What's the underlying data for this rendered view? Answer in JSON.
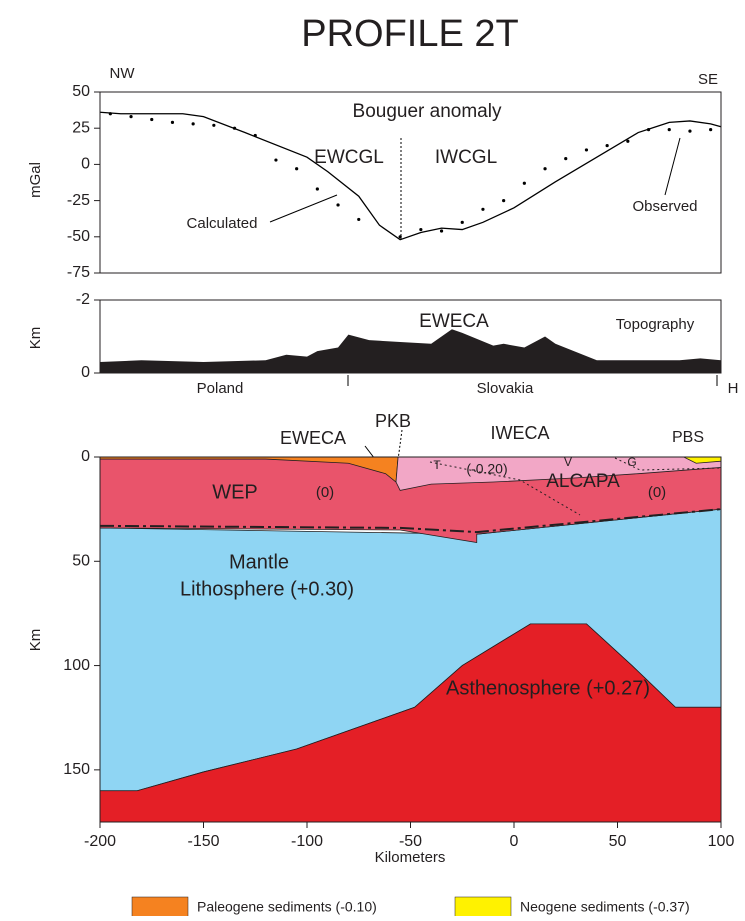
{
  "title": "PROFILE 2T",
  "chart_data": [
    {
      "type": "line",
      "ylabel": "mGal",
      "xlim": [
        -200,
        100
      ],
      "ylim": [
        -75,
        50
      ],
      "yticks": [
        50,
        25,
        0,
        -25,
        -50,
        -75
      ],
      "annotations": [
        "NW",
        "SE",
        "Bouguer anomaly",
        "EWCGL",
        "IWCGL"
      ],
      "series": [
        {
          "name": "Calculated",
          "type": "line",
          "color": "#000000",
          "x": [
            -200,
            -190,
            -160,
            -150,
            -130,
            -100,
            -90,
            -75,
            -65,
            -55,
            -45,
            -35,
            -25,
            -15,
            0,
            20,
            40,
            60,
            75,
            85,
            95,
            100
          ],
          "values": [
            36,
            35,
            35,
            33,
            22,
            5,
            -5,
            -22,
            -42,
            -52,
            -47,
            -44,
            -45,
            -40,
            -30,
            -12,
            5,
            22,
            29,
            30,
            28,
            26
          ]
        },
        {
          "name": "Observed",
          "type": "scatter",
          "color": "#000000",
          "x": [
            -195,
            -185,
            -175,
            -165,
            -155,
            -145,
            -135,
            -125,
            -115,
            -105,
            -95,
            -85,
            -75,
            -55,
            -45,
            -35,
            -25,
            -15,
            -5,
            5,
            15,
            25,
            35,
            45,
            55,
            65,
            75,
            85,
            95
          ],
          "values": [
            35,
            33,
            31,
            29,
            28,
            27,
            25,
            20,
            3,
            -3,
            -17,
            -28,
            -38,
            -50,
            -45,
            -46,
            -40,
            -31,
            -25,
            -13,
            -3,
            4,
            10,
            13,
            16,
            24,
            24,
            23,
            24
          ]
        }
      ]
    },
    {
      "type": "area",
      "ylabel": "Km",
      "xlim": [
        -200,
        100
      ],
      "ylim": [
        0,
        -2
      ],
      "yticks": [
        -2,
        0
      ],
      "color": "#231f20",
      "annotations": [
        "EWECA",
        "Topography",
        "Poland",
        "Slovakia",
        "H"
      ],
      "x": [
        -200,
        -180,
        -150,
        -120,
        -110,
        -100,
        -95,
        -85,
        -80,
        -70,
        -55,
        -40,
        -30,
        -25,
        -10,
        -5,
        5,
        15,
        20,
        40,
        60,
        80,
        90,
        100
      ],
      "values": [
        -0.3,
        -0.35,
        -0.3,
        -0.35,
        -0.5,
        -0.45,
        -0.6,
        -0.7,
        -1.05,
        -0.9,
        -0.85,
        -0.8,
        -1.2,
        -1.1,
        -0.75,
        -0.8,
        -0.7,
        -1.0,
        -0.8,
        -0.35,
        -0.35,
        -0.35,
        -0.4,
        -0.35
      ]
    },
    {
      "type": "section",
      "ylabel": "Km",
      "xlabel": "Kilometers",
      "xlim": [
        -200,
        100
      ],
      "ylim": [
        175,
        0
      ],
      "xticks": [
        -200,
        -150,
        -100,
        -50,
        0,
        50,
        100
      ],
      "yticks": [
        0,
        50,
        100,
        150
      ],
      "annotations": [
        "EWECA",
        "PKB",
        "IWECA",
        "PBS",
        "WEP",
        "(0)",
        "T",
        "(-0.20)",
        "V",
        "G",
        "ALCAPA",
        "(0)",
        "Mantle",
        "Lithosphere (+0.30)",
        "Asthenosphere (+0.27)"
      ],
      "bodies": [
        {
          "color": "#8fd5f3",
          "x": [
            -200,
            -18,
            100,
            100,
            78,
            57,
            35,
            8,
            -25,
            -48,
            -105,
            -150,
            -182,
            -200
          ],
          "y": [
            34,
            37,
            25,
            120,
            120,
            100,
            80,
            80,
            100,
            120,
            140,
            151,
            160,
            160
          ]
        },
        {
          "color": "#e41f26",
          "x": [
            -200,
            -200,
            -182,
            -150,
            -105,
            -48,
            -25,
            8,
            35,
            57,
            78,
            100,
            100
          ],
          "y": [
            175,
            160,
            160,
            151,
            140,
            120,
            100,
            80,
            80,
            100,
            120,
            120,
            175
          ]
        },
        {
          "color": "#e9546b",
          "x": [
            -200,
            100,
            100,
            -18,
            -18,
            -55,
            -200
          ],
          "y": [
            0,
            0,
            25,
            37,
            41,
            35,
            34
          ]
        },
        {
          "color": "#f58220",
          "x": [
            -200,
            -56,
            -57,
            -62,
            -80,
            -120,
            -200
          ],
          "y": [
            0,
            0,
            12,
            8,
            3,
            1,
            1
          ]
        },
        {
          "color": "#f2a7c6",
          "x": [
            -56,
            100,
            100,
            60,
            30,
            -10,
            -40,
            -55,
            -57
          ],
          "y": [
            0,
            0,
            5,
            8,
            10,
            12,
            13,
            16,
            12
          ]
        },
        {
          "color": "#fff200",
          "x": [
            82,
            100,
            100,
            88
          ],
          "y": [
            0,
            0,
            2,
            3
          ]
        }
      ],
      "moho": {
        "x": [
          -200,
          -55,
          -18,
          100
        ],
        "y": [
          33,
          34,
          36,
          25
        ]
      },
      "legend": [
        {
          "name": "Paleogene sediments (-0.10)",
          "color": "#f58220"
        },
        {
          "name": "Neogene sediments (-0.37)",
          "color": "#fff200"
        }
      ]
    }
  ]
}
